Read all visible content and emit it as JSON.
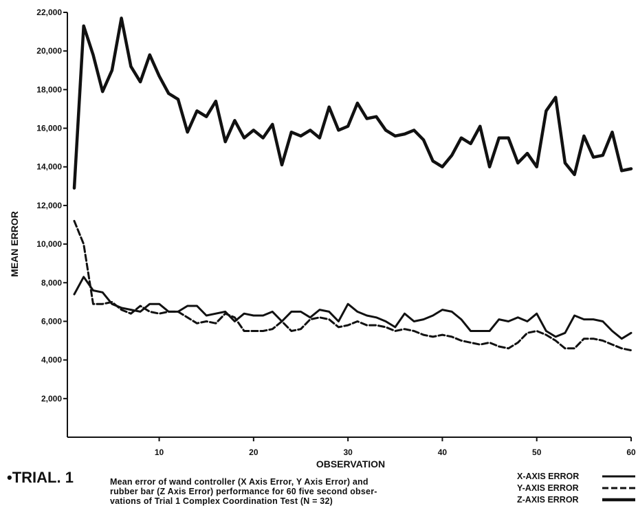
{
  "trial_label": "•TRIAL. 1",
  "caption": [
    "Mean error of wand controller (X Axis Error, Y Axis Error) and",
    "rubber bar (Z Axis Error) performance for 60 five second obser-",
    "vations of Trial 1 Complex Coordination Test (N = 32)"
  ],
  "colors": {
    "ink": "#111111",
    "background": "#ffffff"
  },
  "chart_data": {
    "type": "line",
    "title": "",
    "xlabel": "OBSERVATION",
    "ylabel": "MEAN ERROR",
    "xlim": [
      0,
      60
    ],
    "ylim": [
      0,
      22000
    ],
    "x_ticks": [
      10,
      20,
      30,
      40,
      50,
      60
    ],
    "x_tick_labels": [
      "10",
      "20",
      "30",
      "40",
      "50",
      "60"
    ],
    "y_ticks": [
      2000,
      4000,
      6000,
      8000,
      10000,
      12000,
      14000,
      16000,
      18000,
      20000,
      22000
    ],
    "y_tick_labels": [
      "2,000",
      "4,000",
      "6,000",
      "8,000",
      "10,000",
      "12,000",
      "14,000",
      "16,000",
      "18,000",
      "20,000",
      "22,000"
    ],
    "grid": false,
    "legend_position": "bottom-right",
    "x": [
      1,
      2,
      3,
      4,
      5,
      6,
      7,
      8,
      9,
      10,
      11,
      12,
      13,
      14,
      15,
      16,
      17,
      18,
      19,
      20,
      21,
      22,
      23,
      24,
      25,
      26,
      27,
      28,
      29,
      30,
      31,
      32,
      33,
      34,
      35,
      36,
      37,
      38,
      39,
      40,
      41,
      42,
      43,
      44,
      45,
      46,
      47,
      48,
      49,
      50,
      51,
      52,
      53,
      54,
      55,
      56,
      57,
      58,
      59,
      60
    ],
    "series": [
      {
        "name": "X-AXIS ERROR",
        "style": "solid",
        "values": [
          7400,
          8300,
          7600,
          7500,
          6900,
          6700,
          6600,
          6500,
          6900,
          6900,
          6500,
          6500,
          6800,
          6800,
          6300,
          6400,
          6500,
          6000,
          6400,
          6300,
          6300,
          6500,
          6000,
          6500,
          6500,
          6200,
          6600,
          6500,
          6000,
          6900,
          6500,
          6300,
          6200,
          6000,
          5700,
          6400,
          6000,
          6100,
          6300,
          6600,
          6500,
          6100,
          5500,
          5500,
          5500,
          6100,
          6000,
          6200,
          6000,
          6400,
          5500,
          5200,
          5400,
          6300,
          6100,
          6100,
          6000,
          5500,
          5100,
          5400
        ]
      },
      {
        "name": "Y-AXIS ERROR",
        "style": "dashed",
        "values": [
          11200,
          10000,
          6900,
          6900,
          7000,
          6600,
          6400,
          6800,
          6500,
          6400,
          6500,
          6500,
          6200,
          5900,
          6000,
          5900,
          6400,
          6200,
          5500,
          5500,
          5500,
          5600,
          6000,
          5500,
          5600,
          6100,
          6200,
          6100,
          5700,
          5800,
          6000,
          5800,
          5800,
          5700,
          5500,
          5600,
          5500,
          5300,
          5200,
          5300,
          5200,
          5000,
          4900,
          4800,
          4900,
          4700,
          4600,
          4900,
          5400,
          5500,
          5300,
          5000,
          4600,
          4600,
          5100,
          5100,
          5000,
          4800,
          4600,
          4500
        ]
      },
      {
        "name": "Z-AXIS ERROR",
        "style": "heavy",
        "values": [
          12900,
          21300,
          19800,
          17900,
          19000,
          21700,
          19200,
          18400,
          19800,
          18700,
          17800,
          17500,
          15800,
          16900,
          16600,
          17400,
          15300,
          16400,
          15500,
          15900,
          15500,
          16200,
          14100,
          15800,
          15600,
          15900,
          15500,
          17100,
          15900,
          16100,
          17300,
          16500,
          16600,
          15900,
          15600,
          15700,
          15900,
          15400,
          14300,
          14000,
          14600,
          15500,
          15200,
          16100,
          14000,
          15500,
          15500,
          14200,
          14700,
          14000,
          16900,
          17600,
          14200,
          13600,
          15600,
          14500,
          14600,
          15800,
          13800,
          13900
        ]
      }
    ]
  }
}
